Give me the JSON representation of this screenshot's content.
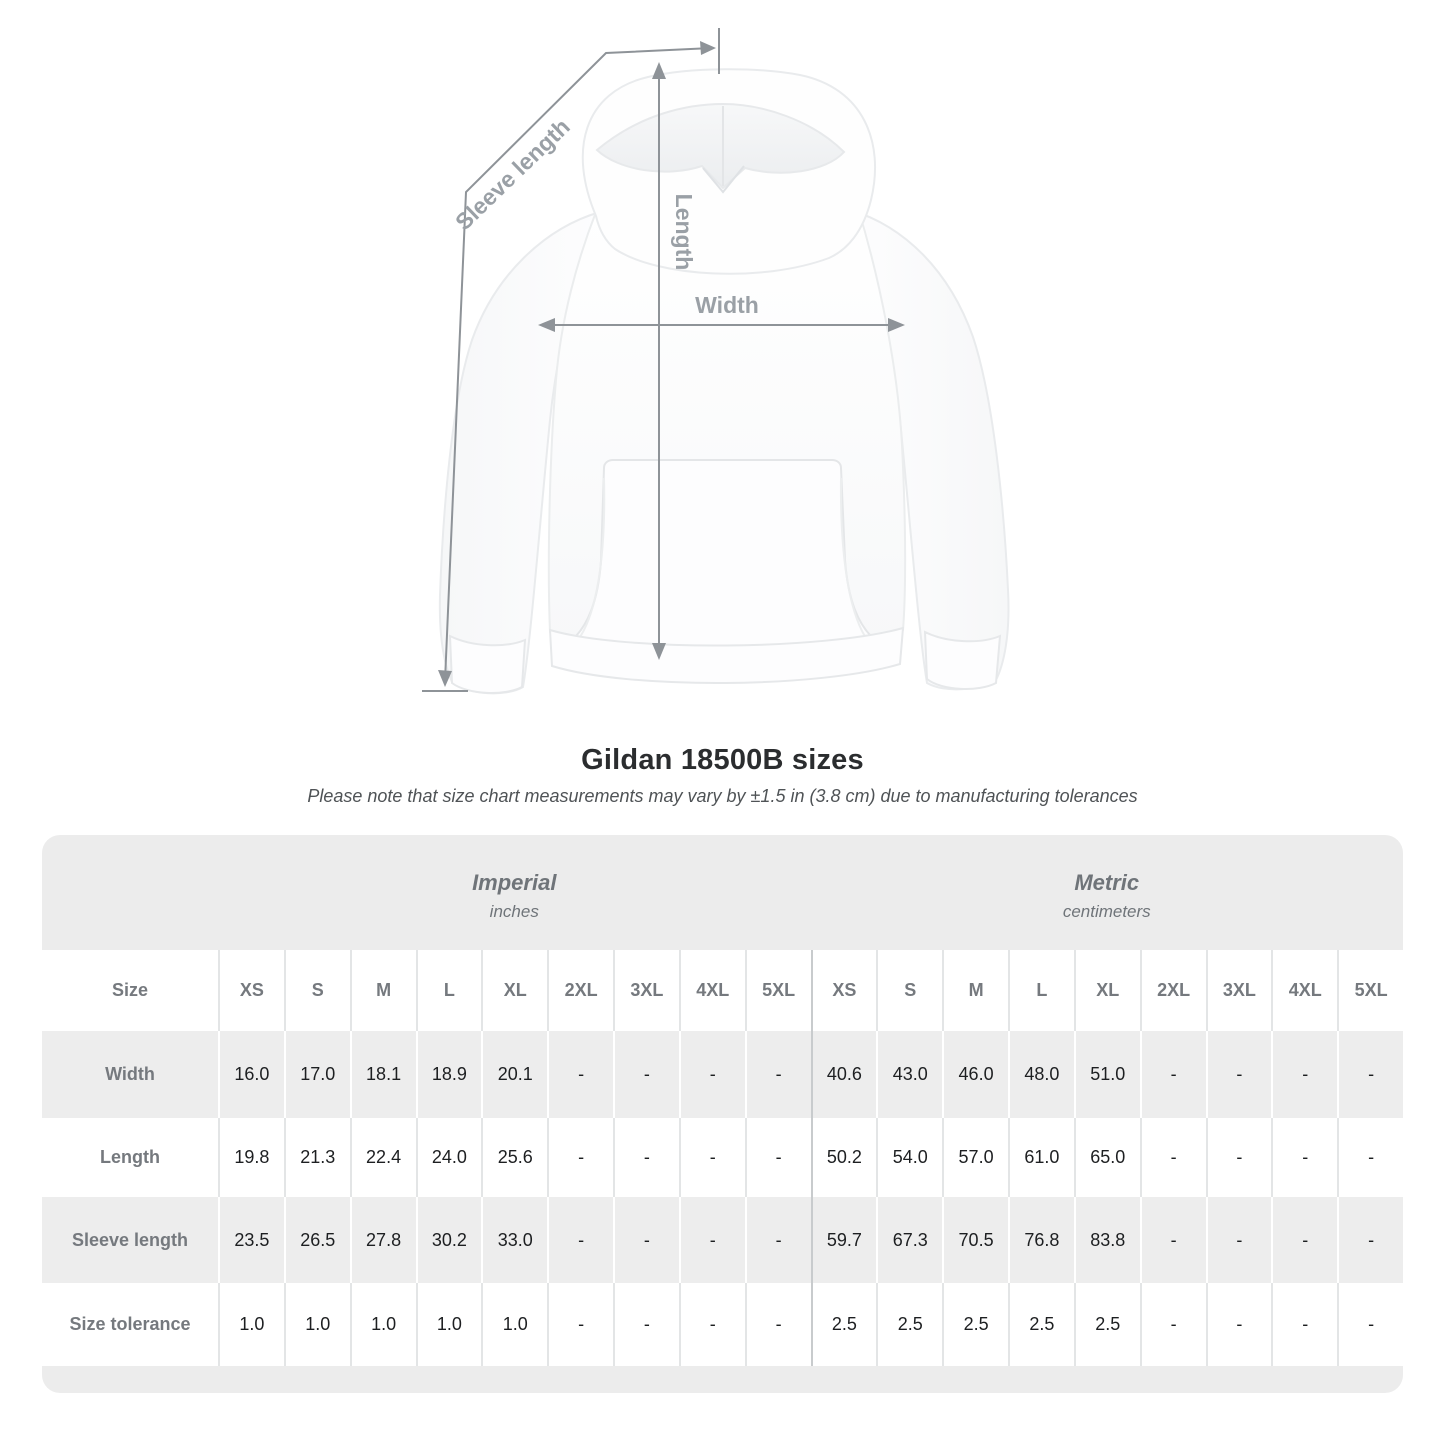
{
  "title": "Gildan 18500B sizes",
  "subtitle": "Please note that size chart measurements may vary by ±1.5 in (3.8 cm) due to manufacturing tolerances",
  "diagram": {
    "labels": {
      "sleeve_length": "Sleeve length",
      "length": "Length",
      "width": "Width"
    },
    "line_color": "#8e9398",
    "label_color": "#9aa0a6"
  },
  "table": {
    "size_header_label": "Size",
    "groups": [
      {
        "name": "Imperial",
        "unit": "inches"
      },
      {
        "name": "Metric",
        "unit": "centimeters"
      }
    ],
    "sizes": [
      "XS",
      "S",
      "M",
      "L",
      "XL",
      "2XL",
      "3XL",
      "4XL",
      "5XL"
    ],
    "rows": [
      {
        "label": "Width",
        "imperial": [
          "16.0",
          "17.0",
          "18.1",
          "18.9",
          "20.1",
          "-",
          "-",
          "-",
          "-"
        ],
        "metric": [
          "40.6",
          "43.0",
          "46.0",
          "48.0",
          "51.0",
          "-",
          "-",
          "-",
          "-"
        ]
      },
      {
        "label": "Length",
        "imperial": [
          "19.8",
          "21.3",
          "22.4",
          "24.0",
          "25.6",
          "-",
          "-",
          "-",
          "-"
        ],
        "metric": [
          "50.2",
          "54.0",
          "57.0",
          "61.0",
          "65.0",
          "-",
          "-",
          "-",
          "-"
        ]
      },
      {
        "label": "Sleeve length",
        "imperial": [
          "23.5",
          "26.5",
          "27.8",
          "30.2",
          "33.0",
          "-",
          "-",
          "-",
          "-"
        ],
        "metric": [
          "59.7",
          "67.3",
          "70.5",
          "76.8",
          "83.8",
          "-",
          "-",
          "-",
          "-"
        ]
      },
      {
        "label": "Size tolerance",
        "imperial": [
          "1.0",
          "1.0",
          "1.0",
          "1.0",
          "1.0",
          "-",
          "-",
          "-",
          "-"
        ],
        "metric": [
          "2.5",
          "2.5",
          "2.5",
          "2.5",
          "2.5",
          "-",
          "-",
          "-",
          "-"
        ]
      }
    ]
  },
  "colors": {
    "row_alt": "#ededed",
    "header_band": "#ececec",
    "divider": "#e3e5e6",
    "group_divider": "#c8cbcd",
    "label_text": "#75797e",
    "value_text": "#1d1f21"
  }
}
